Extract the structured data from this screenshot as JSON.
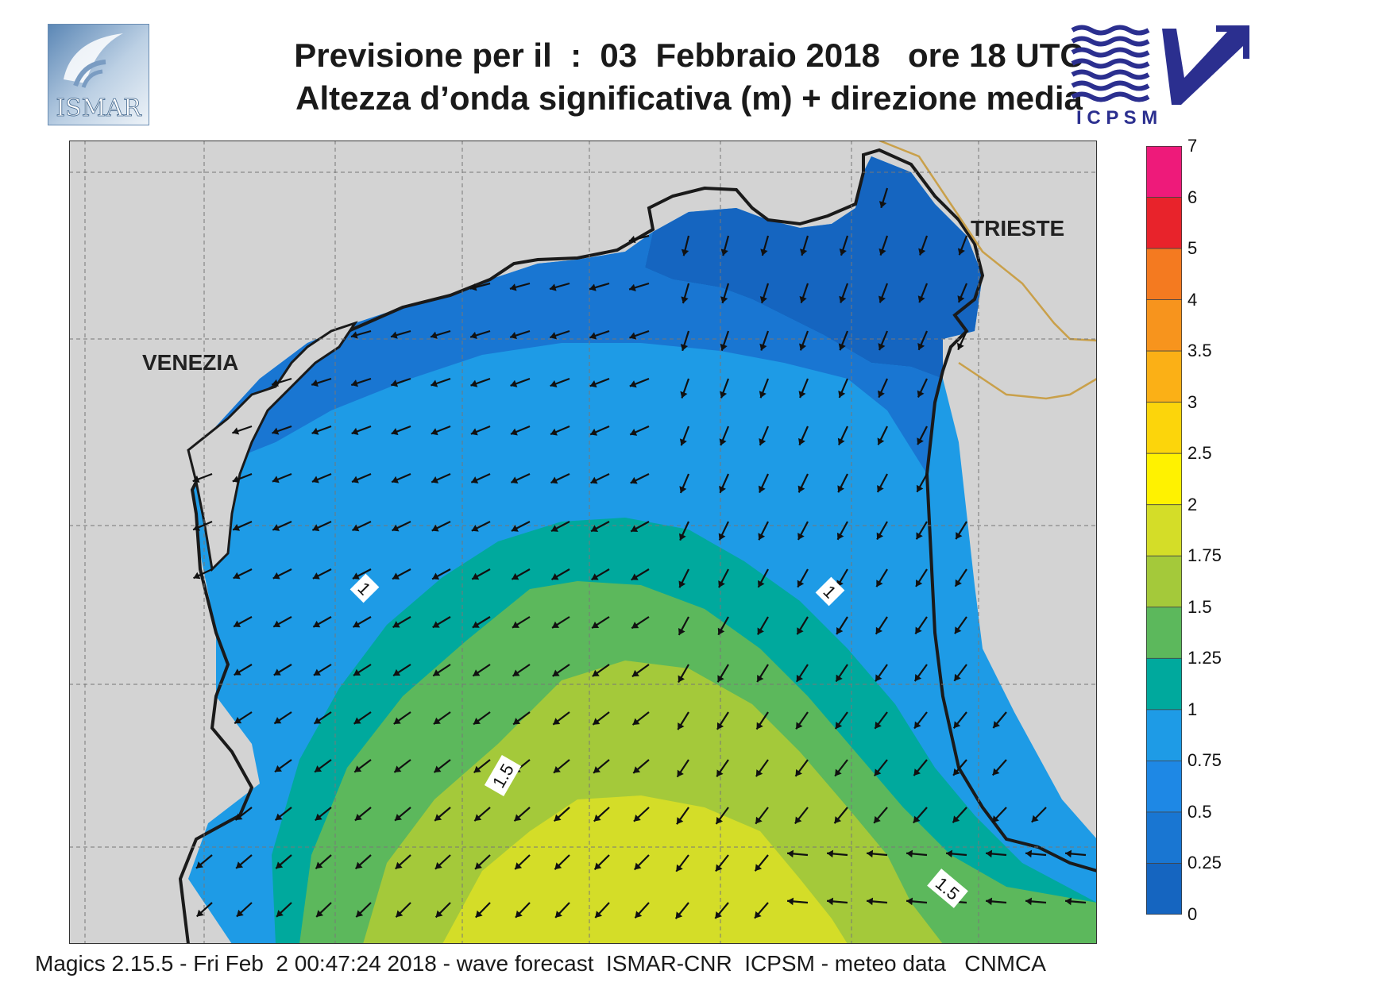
{
  "header": {
    "title_line1": "Previsione per il  :  03  Febbraio 2018   ore 18 UTC",
    "title_line2": "Altezza d’onda significativa (m) + direzione media"
  },
  "logos": {
    "left": {
      "text": "ISMAR"
    },
    "right": {
      "text": "I C P S M"
    }
  },
  "map": {
    "cities": [
      {
        "name": "VENEZIA"
      },
      {
        "name": "TRIESTE"
      }
    ],
    "contour_labels": [
      "1",
      "1",
      "1.5",
      "1.5"
    ],
    "colors": {
      "land": "#d3d3d3",
      "wave_0_25": "#1565c0",
      "wave_25_50": "#1976d2",
      "wave_50_75": "#1e88e5",
      "wave_75_1": "#1e9be6",
      "wave_1_125": "#00a99d",
      "wave_125_15": "#5cb85c",
      "wave_15_175": "#a4c93a",
      "wave_175_2": "#d4dd28",
      "border": "#c9a04a"
    }
  },
  "legend": {
    "ticks": [
      "7",
      "6",
      "5",
      "4",
      "3.5",
      "3",
      "2.5",
      "2",
      "1.75",
      "1.5",
      "1.25",
      "1",
      "0.75",
      "0.5",
      "0.25",
      "0"
    ],
    "colors_top_to_bottom": [
      "#ee1a7a",
      "#e8232b",
      "#f47a20",
      "#f7941d",
      "#fbb016",
      "#fcd50b",
      "#fff200",
      "#d4dd28",
      "#a4c93a",
      "#5cb85c",
      "#00a99d",
      "#1e9be6",
      "#1e88e5",
      "#1976d2",
      "#1565c0"
    ]
  },
  "footer": {
    "text": "Magics 2.15.5 - Fri Feb  2 00:47:24 2018 - wave forecast  ISMAR-CNR  ICPSM - meteo data   CNMCA"
  }
}
